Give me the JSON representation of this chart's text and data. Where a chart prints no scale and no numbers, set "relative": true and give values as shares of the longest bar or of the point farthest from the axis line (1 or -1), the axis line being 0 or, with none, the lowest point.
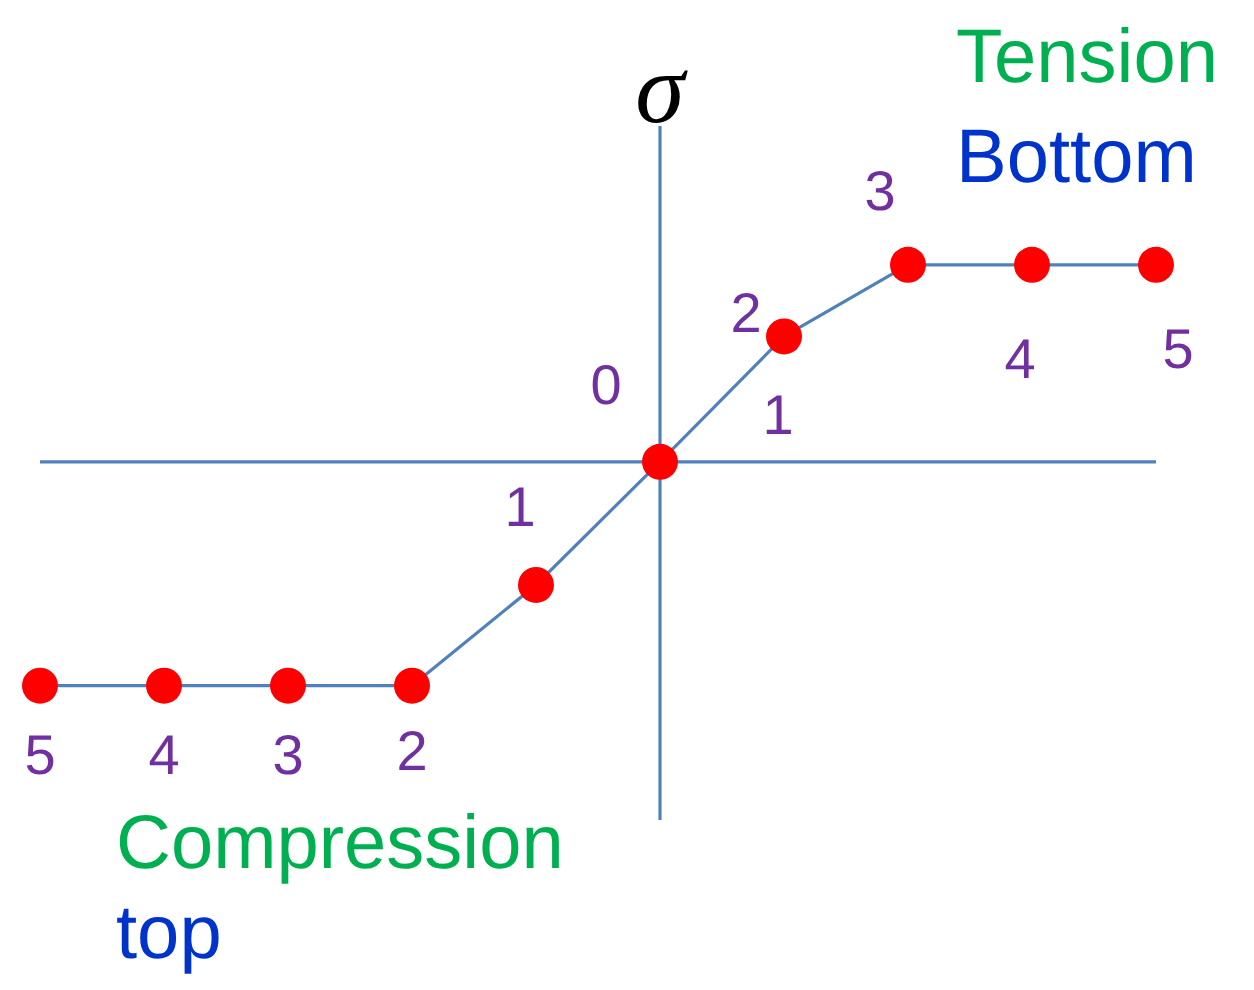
{
  "chart_data": {
    "type": "line",
    "ylabel": "σ",
    "relative": true,
    "categories": [
      null,
      null,
      null,
      null,
      null,
      null,
      null,
      null,
      null,
      null
    ],
    "series": [
      {
        "type": "line",
        "color": "#4f81bd",
        "colors": [
          "#ff0000",
          "#ff0000",
          "#ff0000",
          "#ff0000",
          "#ff0000",
          "#ff0000",
          "#ff0000",
          "#ff0000",
          "#ff0000",
          "#ff0000"
        ],
        "marker": "circle",
        "line_style": "solid",
        "values": [
          -1,
          -1,
          -1,
          -1,
          -0.55,
          0,
          0.56,
          0.88,
          0.88,
          0.88
        ]
      }
    ],
    "ref_lines": [
      {
        "axis": "y",
        "value": 0,
        "color": "#4f81bd",
        "line_style": "solid"
      }
    ],
    "annotations": [
      "Tension",
      "Bottom",
      "Compression",
      "top",
      "5",
      "4",
      "3",
      "2",
      "1",
      "0",
      "1",
      "2",
      "3",
      "4",
      "5"
    ]
  }
}
